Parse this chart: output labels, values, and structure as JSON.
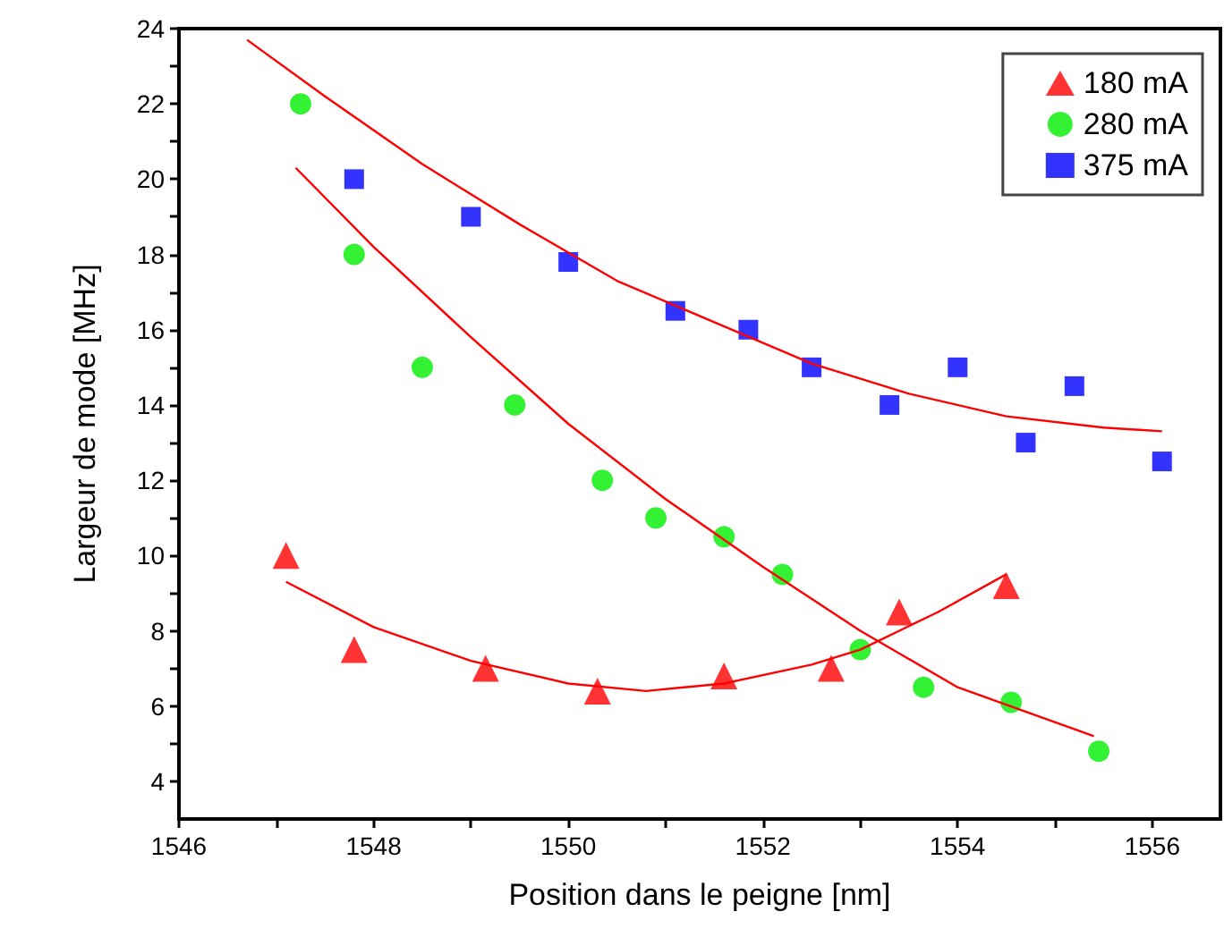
{
  "chart_data": {
    "type": "scatter",
    "xlabel": "Position dans le peigne [nm]",
    "ylabel": "Largeur de mode [MHz]",
    "xlim": [
      1546,
      1556.7
    ],
    "ylim": [
      3,
      24
    ],
    "xticks": [
      1546,
      {
        "value": 1547,
        "label": null
      },
      1548,
      {
        "value": 1549,
        "label": null
      },
      1550,
      {
        "value": 1551,
        "label": null
      },
      1552,
      {
        "value": 1553,
        "label": null
      },
      1554,
      {
        "value": 1555,
        "label": null
      },
      1556
    ],
    "yticks": [
      4,
      {
        "value": 5,
        "label": null
      },
      6,
      {
        "value": 7,
        "label": null
      },
      8,
      {
        "value": 9,
        "label": null
      },
      10,
      {
        "value": 11,
        "label": null
      },
      12,
      {
        "value": 13,
        "label": null
      },
      14,
      {
        "value": 15,
        "label": null
      },
      16,
      {
        "value": 17,
        "label": null
      },
      18,
      {
        "value": 19,
        "label": null
      },
      20,
      {
        "value": 21,
        "label": null
      },
      22,
      {
        "value": 23,
        "label": null
      },
      24
    ],
    "grid": false,
    "legend": "top right",
    "series": [
      {
        "name": "180 mA",
        "color": "#ff0000",
        "marker": "triangle",
        "x": [
          1547.1,
          1547.8,
          1549.15,
          1550.3,
          1551.6,
          1552.7,
          1553.4,
          1554.5
        ],
        "values": [
          10,
          7.5,
          7.0,
          6.4,
          6.8,
          7.0,
          8.5,
          9.2
        ]
      },
      {
        "name": "280 mA",
        "color": "#00ee00",
        "marker": "circle",
        "x": [
          1547.25,
          1547.8,
          1548.5,
          1549.45,
          1550.35,
          1550.9,
          1551.6,
          1552.2,
          1553.0,
          1553.65,
          1554.55,
          1555.45
        ],
        "values": [
          22,
          18,
          15,
          14,
          12,
          11,
          10.5,
          9.5,
          7.5,
          6.5,
          6.1,
          4.8
        ]
      },
      {
        "name": "375 mA",
        "color": "#0000ff",
        "marker": "square",
        "x": [
          1547.8,
          1549.0,
          1550.0,
          1551.1,
          1551.85,
          1552.5,
          1553.3,
          1554.0,
          1554.7,
          1555.2,
          1556.1
        ],
        "values": [
          20,
          19,
          17.8,
          16.5,
          16,
          15,
          14,
          15,
          13,
          14.5,
          12.5
        ]
      },
      {
        "type": "line",
        "color": "#ff0000",
        "marker": "none",
        "x": [
          1547.1,
          1548,
          1549,
          1550,
          1550.8,
          1551.6,
          1552.5,
          1553,
          1553.8,
          1554.5
        ],
        "values": [
          9.3,
          8.1,
          7.2,
          6.6,
          6.4,
          6.6,
          7.1,
          7.5,
          8.5,
          9.5
        ]
      },
      {
        "type": "line",
        "color": "#ff0000",
        "marker": "none",
        "x": [
          1547.2,
          1548,
          1549,
          1550,
          1551,
          1552,
          1553,
          1554,
          1555.4
        ],
        "values": [
          20.3,
          18.2,
          15.8,
          13.5,
          11.5,
          9.7,
          8.0,
          6.5,
          5.2
        ]
      },
      {
        "type": "line",
        "color": "#ff0000",
        "marker": "none",
        "x": [
          1546.7,
          1547.5,
          1548.5,
          1549.5,
          1550.5,
          1551.5,
          1552.5,
          1553.5,
          1554.5,
          1555.5,
          1556.1
        ],
        "values": [
          23.7,
          22.2,
          20.4,
          18.8,
          17.3,
          16.2,
          15.1,
          14.3,
          13.7,
          13.4,
          13.3
        ]
      }
    ]
  }
}
